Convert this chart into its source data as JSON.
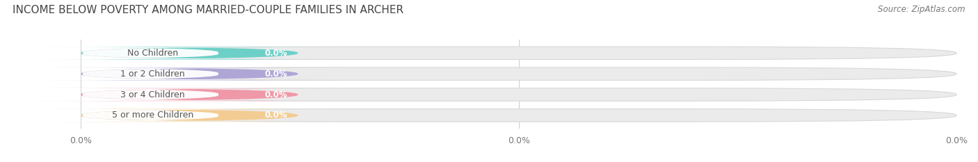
{
  "title": "INCOME BELOW POVERTY AMONG MARRIED-COUPLE FAMILIES IN ARCHER",
  "source": "Source: ZipAtlas.com",
  "categories": [
    "No Children",
    "1 or 2 Children",
    "3 or 4 Children",
    "5 or more Children"
  ],
  "values": [
    0.0,
    0.0,
    0.0,
    0.0
  ],
  "bar_colors": [
    "#5fcec5",
    "#a99fd4",
    "#f08fa0",
    "#f5c98a"
  ],
  "background_color": "#ffffff",
  "bar_bg_color": "#ebebeb",
  "title_fontsize": 11,
  "label_fontsize": 9,
  "value_fontsize": 8.5,
  "source_fontsize": 8.5,
  "xtick_labels": [
    "0.0%",
    "0.0%",
    "0.0%"
  ],
  "xtick_positions": [
    0.0,
    0.5,
    1.0
  ]
}
